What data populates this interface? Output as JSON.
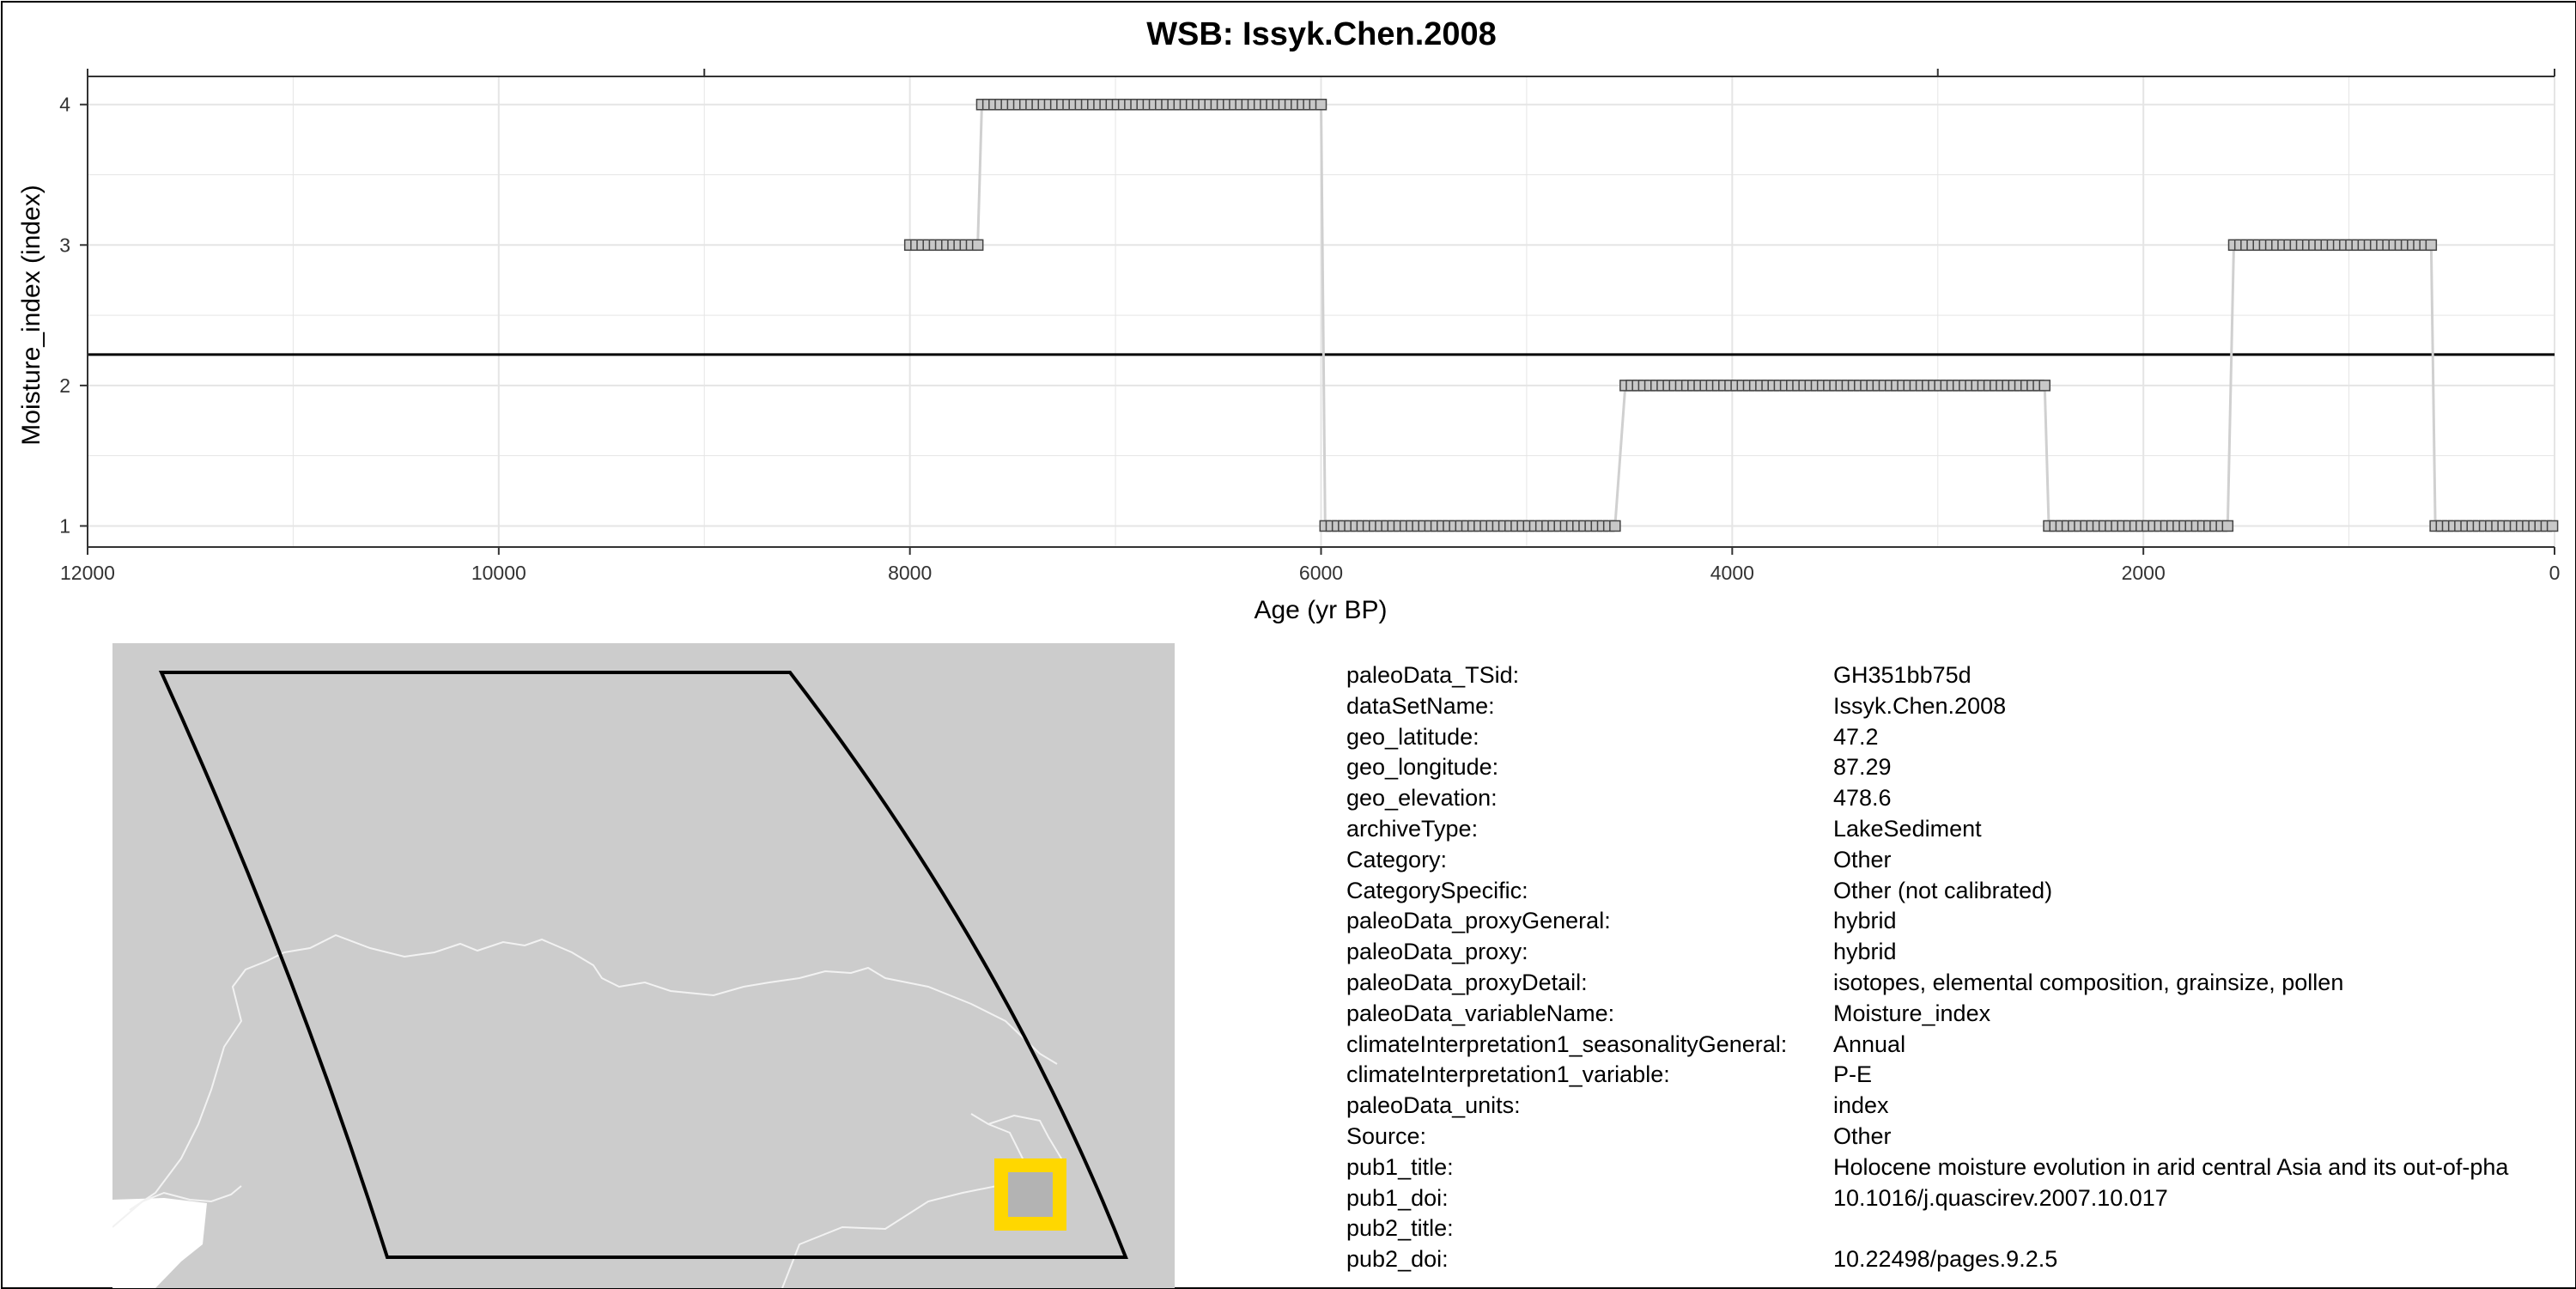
{
  "chart_data": {
    "type": "line",
    "title": "WSB: Issyk.Chen.2008",
    "xlabel": "Age (yr BP)",
    "ylabel": "Moisture_index (index)",
    "x_reversed": true,
    "xlim": [
      12000,
      0
    ],
    "ylim": [
      0.85,
      4.2
    ],
    "x_ticks": [
      12000,
      10000,
      8000,
      6000,
      4000,
      2000,
      0
    ],
    "y_ticks": [
      1,
      2,
      3,
      4
    ],
    "top_ticks": [
      12000,
      9000,
      3000,
      0
    ],
    "grid": true,
    "mean_line": 2.22,
    "segments": [
      {
        "from": 8000,
        "to": 7650,
        "value": 3
      },
      {
        "from": 7650,
        "to": 6000,
        "value": 4
      },
      {
        "from": 5980,
        "to": 4550,
        "value": 1
      },
      {
        "from": 4520,
        "to": 2480,
        "value": 2
      },
      {
        "from": 2460,
        "to": 1580,
        "value": 1
      },
      {
        "from": 1560,
        "to": 600,
        "value": 3
      },
      {
        "from": 580,
        "to": 0,
        "value": 1
      }
    ],
    "step": 30,
    "series": [
      {
        "color": "#d0d0d0",
        "marker_fill": "#c8c8c8",
        "marker_edge": "#444444"
      }
    ],
    "colors": {
      "mean_line": "#000000",
      "grid": "#e5e5e5"
    }
  },
  "map": {
    "colors": {
      "land": "#cccccc",
      "border": "#f2f2f2",
      "sea": "#ffffff",
      "box": "#000000",
      "marker": "#ffd700",
      "marker_inner": "#b3b3b3"
    }
  },
  "metadata": [
    {
      "key": "paleoData_TSid:",
      "value": "GH351bb75d"
    },
    {
      "key": "dataSetName:",
      "value": "Issyk.Chen.2008"
    },
    {
      "key": "geo_latitude:",
      "value": "47.2"
    },
    {
      "key": "geo_longitude:",
      "value": "87.29"
    },
    {
      "key": "geo_elevation:",
      "value": "478.6"
    },
    {
      "key": "archiveType:",
      "value": "LakeSediment"
    },
    {
      "key": "Category:",
      "value": "Other"
    },
    {
      "key": "CategorySpecific:",
      "value": "Other (not calibrated)"
    },
    {
      "key": "paleoData_proxyGeneral:",
      "value": "hybrid"
    },
    {
      "key": "paleoData_proxy:",
      "value": "hybrid"
    },
    {
      "key": "paleoData_proxyDetail:",
      "value": "isotopes, elemental composition, grainsize, pollen"
    },
    {
      "key": "paleoData_variableName:",
      "value": "Moisture_index"
    },
    {
      "key": "climateInterpretation1_seasonalityGeneral:",
      "value": "Annual"
    },
    {
      "key": "climateInterpretation1_variable:",
      "value": "P-E"
    },
    {
      "key": "paleoData_units:",
      "value": "index"
    },
    {
      "key": "Source:",
      "value": "Other"
    },
    {
      "key": "pub1_title:",
      "value": "Holocene moisture evolution in arid central Asia and its out-of-pha"
    },
    {
      "key": "pub1_doi:",
      "value": "10.1016/j.quascirev.2007.10.017"
    },
    {
      "key": "pub2_title:",
      "value": ""
    },
    {
      "key": "pub2_doi:",
      "value": "10.22498/pages.9.2.5"
    }
  ]
}
